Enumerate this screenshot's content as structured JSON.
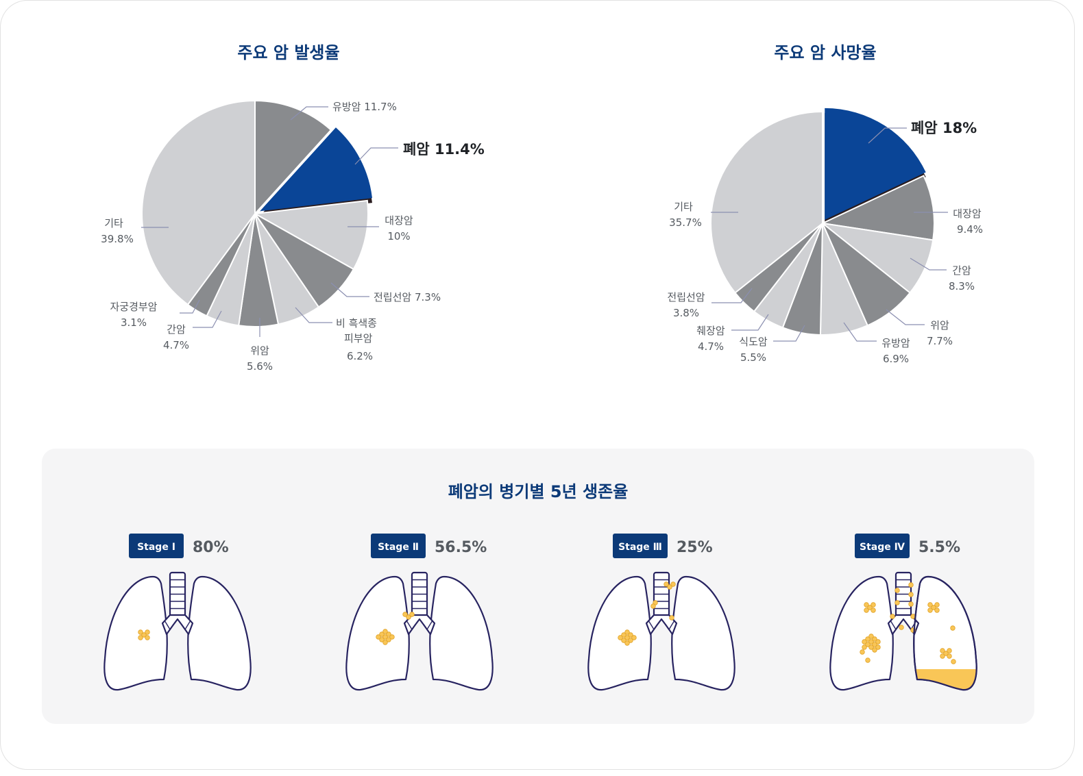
{
  "chart_data": [
    {
      "type": "pie",
      "title": "주요 암 발생율",
      "slices": [
        {
          "name": "유방암",
          "value": 11.7,
          "label": "11.7%",
          "color": "#898b8e"
        },
        {
          "name": "폐암",
          "value": 11.4,
          "label": "11.4%",
          "color": "#0a4597",
          "highlight": true
        },
        {
          "name": "대장암",
          "value": 10,
          "label": "10%",
          "color": "#cfd0d3"
        },
        {
          "name": "전립선암",
          "value": 7.3,
          "label": "7.3%",
          "color": "#898b8e"
        },
        {
          "name": "비 흑색종 피부암",
          "value": 6.2,
          "label": "6.2%",
          "color": "#cfd0d3"
        },
        {
          "name": "위암",
          "value": 5.6,
          "label": "5.6%",
          "color": "#898b8e"
        },
        {
          "name": "간암",
          "value": 4.7,
          "label": "4.7%",
          "color": "#cfd0d3"
        },
        {
          "name": "자궁경부암",
          "value": 3.1,
          "label": "3.1%",
          "color": "#898b8e"
        },
        {
          "name": "기타",
          "value": 39.8,
          "label": "39.8%",
          "color": "#cfd0d3"
        }
      ]
    },
    {
      "type": "pie",
      "title": "주요 암 사망율",
      "slices": [
        {
          "name": "폐암",
          "value": 18,
          "label": "18%",
          "color": "#0a4597",
          "highlight": true
        },
        {
          "name": "대장암",
          "value": 9.4,
          "label": "9.4%",
          "color": "#898b8e"
        },
        {
          "name": "간암",
          "value": 8.3,
          "label": "8.3%",
          "color": "#cfd0d3"
        },
        {
          "name": "위암",
          "value": 7.7,
          "label": "7.7%",
          "color": "#898b8e"
        },
        {
          "name": "유방암",
          "value": 6.9,
          "label": "6.9%",
          "color": "#cfd0d3"
        },
        {
          "name": "식도암",
          "value": 5.5,
          "label": "5.5%",
          "color": "#898b8e"
        },
        {
          "name": "췌장암",
          "value": 4.7,
          "label": "4.7%",
          "color": "#cfd0d3"
        },
        {
          "name": "전립선암",
          "value": 3.8,
          "label": "3.8%",
          "color": "#898b8e"
        },
        {
          "name": "기타",
          "value": 35.7,
          "label": "35.7%",
          "color": "#cfd0d3"
        }
      ]
    }
  ],
  "survival": {
    "title": "폐암의 병기별 5년 생존율",
    "stages": [
      {
        "label": "Stage Ⅰ",
        "value": "80%"
      },
      {
        "label": "Stage Ⅱ",
        "value": "56.5%"
      },
      {
        "label": "Stage Ⅲ",
        "value": "25%"
      },
      {
        "label": "Stage Ⅳ",
        "value": "5.5%"
      }
    ]
  },
  "colors": {
    "navy": "#0c3a78",
    "lung_blue": "#0a4597",
    "dark_gray": "#898b8e",
    "light_gray": "#cfd0d3",
    "tumor": "#f9c657",
    "outline": "#272360"
  },
  "icons": [
    "lung-icon",
    "tumor-icon"
  ]
}
